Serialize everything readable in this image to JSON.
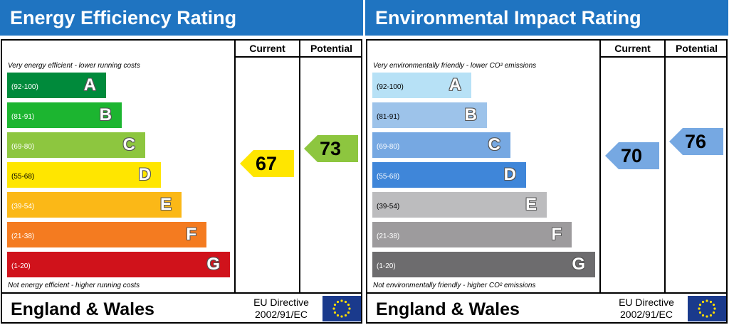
{
  "chart_data": [
    {
      "type": "bar",
      "title": "Energy Efficiency Rating",
      "columns": [
        "Current",
        "Potential"
      ],
      "top_caption": "Very energy efficient - lower running costs",
      "bottom_caption": "Not energy efficient - higher running costs",
      "categories": [
        "A",
        "B",
        "C",
        "D",
        "E",
        "F",
        "G"
      ],
      "ranges": [
        "(92-100)",
        "(81-91)",
        "(69-80)",
        "(55-68)",
        "(39-54)",
        "(21-38)",
        "(1-20)"
      ],
      "band_min": [
        92,
        81,
        69,
        55,
        39,
        21,
        1
      ],
      "colors": [
        "#008a3b",
        "#1cb530",
        "#8dc63f",
        "#ffe600",
        "#fbb817",
        "#f47b20",
        "#d0121b"
      ],
      "current": 67,
      "potential": 73,
      "footer": "England & Wales",
      "directive_line1": "EU Directive",
      "directive_line2": "2002/91/EC"
    },
    {
      "type": "bar",
      "title": "Environmental Impact Rating",
      "columns": [
        "Current",
        "Potential"
      ],
      "top_caption": "Very environmentally friendly - lower CO² emissions",
      "bottom_caption": "Not environmentally friendly - higher CO² emissions",
      "categories": [
        "A",
        "B",
        "C",
        "D",
        "E",
        "F",
        "G"
      ],
      "ranges": [
        "(92-100)",
        "(81-91)",
        "(69-80)",
        "(55-68)",
        "(39-54)",
        "(21-38)",
        "(1-20)"
      ],
      "band_min": [
        92,
        81,
        69,
        55,
        39,
        21,
        1
      ],
      "colors": [
        "#b7e1f6",
        "#9dc3ea",
        "#76a8e2",
        "#3f86d9",
        "#bcbcbe",
        "#9d9b9d",
        "#6d6c6e"
      ],
      "current": 70,
      "potential": 76,
      "footer": "England & Wales",
      "directive_line1": "EU Directive",
      "directive_line2": "2002/91/EC"
    }
  ]
}
